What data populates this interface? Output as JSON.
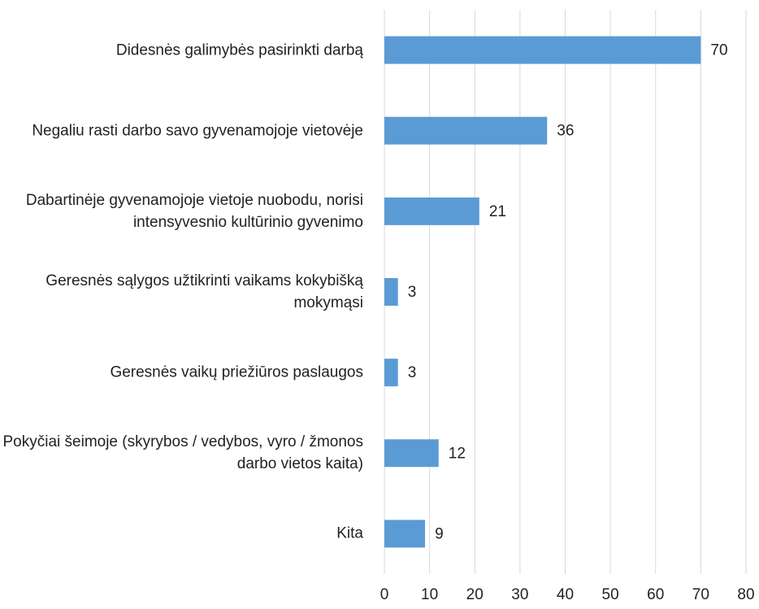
{
  "chart_data": {
    "type": "bar",
    "orientation": "horizontal",
    "categories": [
      "Didesnės galimybės pasirinkti darbą",
      "Negaliu rasti darbo savo gyvenamojoje vietovėje",
      "Dabartinėje gyvenamojoje vietoje nuobodu, norisi intensyvesnio kultūrinio gyvenimo",
      "Geresnės sąlygos užtikrinti vaikams kokybišką mokymąsi",
      "Geresnės vaikų priežiūros paslaugos",
      "Pokyčiai šeimoje (skyrybos / vedybos, vyro / žmonos darbo vietos kaita)",
      "Kita"
    ],
    "values": [
      70,
      36,
      21,
      3,
      3,
      12,
      9
    ],
    "color": "#5b9bd5",
    "xlim": [
      0,
      80
    ],
    "xticks": [
      0,
      10,
      20,
      30,
      40,
      50,
      60,
      70,
      80
    ],
    "grid": true
  }
}
